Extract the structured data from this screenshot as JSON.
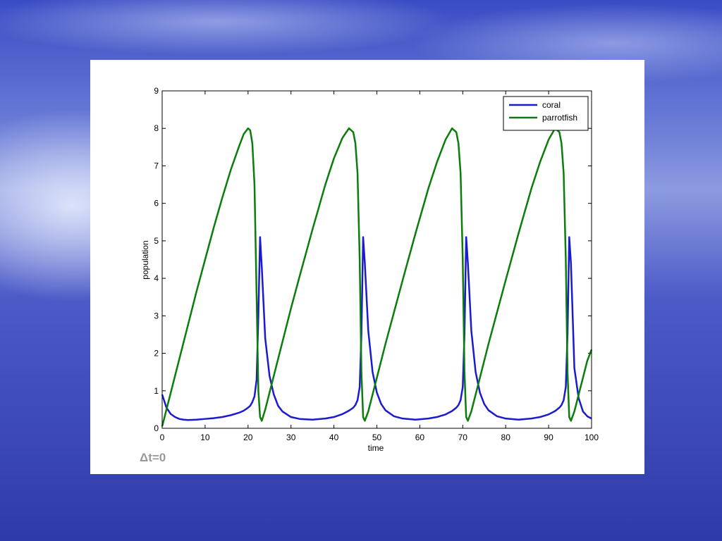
{
  "chart_data": {
    "type": "line",
    "xlabel": "time",
    "ylabel": "population",
    "annotation": "Δt=0",
    "legend": "upper right",
    "xlim": [
      0,
      100
    ],
    "ylim": [
      0,
      9
    ],
    "xticks": [
      0,
      10,
      20,
      30,
      40,
      50,
      60,
      70,
      80,
      90,
      100
    ],
    "yticks": [
      0,
      1,
      2,
      3,
      4,
      5,
      6,
      7,
      8,
      9
    ],
    "x": [
      0,
      1,
      2,
      3,
      4,
      5,
      6,
      8,
      10,
      12,
      14,
      16,
      18,
      19,
      20,
      20.5,
      21,
      21.5,
      22,
      22.4,
      22.8,
      23.2,
      24,
      25,
      26,
      27,
      28,
      30,
      32,
      35,
      38,
      40,
      42,
      43.5,
      44.5,
      45,
      45.5,
      46,
      46.4,
      46.8,
      47.2,
      48,
      49,
      50,
      51,
      52,
      54,
      56,
      59,
      62,
      64,
      66,
      67.5,
      68.5,
      69,
      69.5,
      70,
      70.4,
      70.8,
      71.2,
      72,
      73,
      74,
      75,
      76,
      78,
      80,
      83,
      86,
      88,
      90,
      91.5,
      92.5,
      93,
      93.5,
      94,
      94.4,
      94.8,
      95.2,
      96,
      97,
      98,
      99,
      100
    ],
    "series": [
      {
        "name": "coral",
        "color": "#1a1ad0",
        "values": [
          0.9,
          0.55,
          0.38,
          0.3,
          0.25,
          0.23,
          0.22,
          0.23,
          0.25,
          0.27,
          0.3,
          0.35,
          0.42,
          0.47,
          0.55,
          0.6,
          0.7,
          0.85,
          1.3,
          3.0,
          5.1,
          4.3,
          2.4,
          1.4,
          0.9,
          0.6,
          0.45,
          0.3,
          0.25,
          0.23,
          0.26,
          0.3,
          0.38,
          0.47,
          0.55,
          0.62,
          0.75,
          1.1,
          2.5,
          5.1,
          4.4,
          2.6,
          1.5,
          0.95,
          0.65,
          0.48,
          0.32,
          0.26,
          0.23,
          0.26,
          0.3,
          0.37,
          0.46,
          0.55,
          0.62,
          0.75,
          1.1,
          2.5,
          5.1,
          4.4,
          2.6,
          1.5,
          0.95,
          0.65,
          0.48,
          0.32,
          0.26,
          0.23,
          0.26,
          0.3,
          0.37,
          0.46,
          0.55,
          0.62,
          0.75,
          1.1,
          2.5,
          5.1,
          4.4,
          1.6,
          0.8,
          0.45,
          0.32,
          0.26
        ]
      },
      {
        "name": "parrotfish",
        "color": "#0a7d0a",
        "values": [
          0.05,
          0.5,
          0.95,
          1.4,
          1.85,
          2.3,
          2.75,
          3.65,
          4.5,
          5.35,
          6.15,
          6.9,
          7.55,
          7.85,
          8.0,
          7.95,
          7.6,
          6.5,
          3.5,
          1.0,
          0.3,
          0.2,
          0.5,
          0.95,
          1.4,
          1.85,
          2.3,
          3.2,
          4.05,
          5.3,
          6.5,
          7.2,
          7.75,
          8.0,
          7.9,
          7.6,
          6.8,
          4.5,
          1.5,
          0.3,
          0.2,
          0.45,
          0.9,
          1.35,
          1.8,
          2.25,
          3.1,
          3.95,
          5.2,
          6.4,
          7.1,
          7.7,
          8.0,
          7.9,
          7.6,
          6.8,
          4.5,
          1.5,
          0.3,
          0.2,
          0.45,
          0.9,
          1.35,
          1.8,
          2.25,
          3.1,
          3.95,
          5.2,
          6.4,
          7.1,
          7.7,
          8.0,
          7.9,
          7.6,
          6.8,
          4.5,
          1.5,
          0.3,
          0.2,
          0.45,
          0.9,
          1.35,
          1.8,
          2.1
        ]
      }
    ]
  }
}
